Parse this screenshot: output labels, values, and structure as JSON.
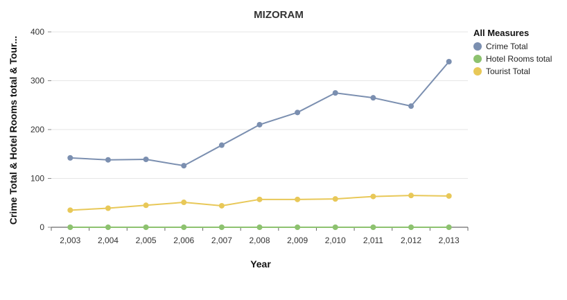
{
  "chart_data": {
    "type": "line",
    "title": "MIZORAM",
    "xlabel": "Year",
    "ylabel": "Crime Total & Hotel Rooms total & Tour...",
    "x": [
      2003,
      2004,
      2005,
      2006,
      2007,
      2008,
      2009,
      2010,
      2011,
      2012,
      2013
    ],
    "x_tick_labels": [
      "2,003",
      "2,004",
      "2,005",
      "2,006",
      "2,007",
      "2,008",
      "2,009",
      "2,010",
      "2,011",
      "2,012",
      "2,013"
    ],
    "y_ticks": [
      0,
      100,
      200,
      300,
      400
    ],
    "ylim": [
      0,
      400
    ],
    "grid": "horizontal",
    "legend": {
      "title": "All Measures",
      "placement": "top-right"
    },
    "series": [
      {
        "name": "Crime Total",
        "color": "#7b8fb0",
        "values": [
          142,
          138,
          139,
          126,
          168,
          210,
          235,
          275,
          265,
          248,
          339
        ]
      },
      {
        "name": "Hotel Rooms total",
        "color": "#8dc26f",
        "values": [
          0,
          0,
          0,
          0,
          0,
          0,
          0,
          0,
          0,
          0,
          0
        ]
      },
      {
        "name": "Tourist Total",
        "color": "#e8c858",
        "values": [
          35,
          39,
          45,
          51,
          44,
          57,
          57,
          58,
          63,
          65,
          64
        ]
      }
    ]
  }
}
